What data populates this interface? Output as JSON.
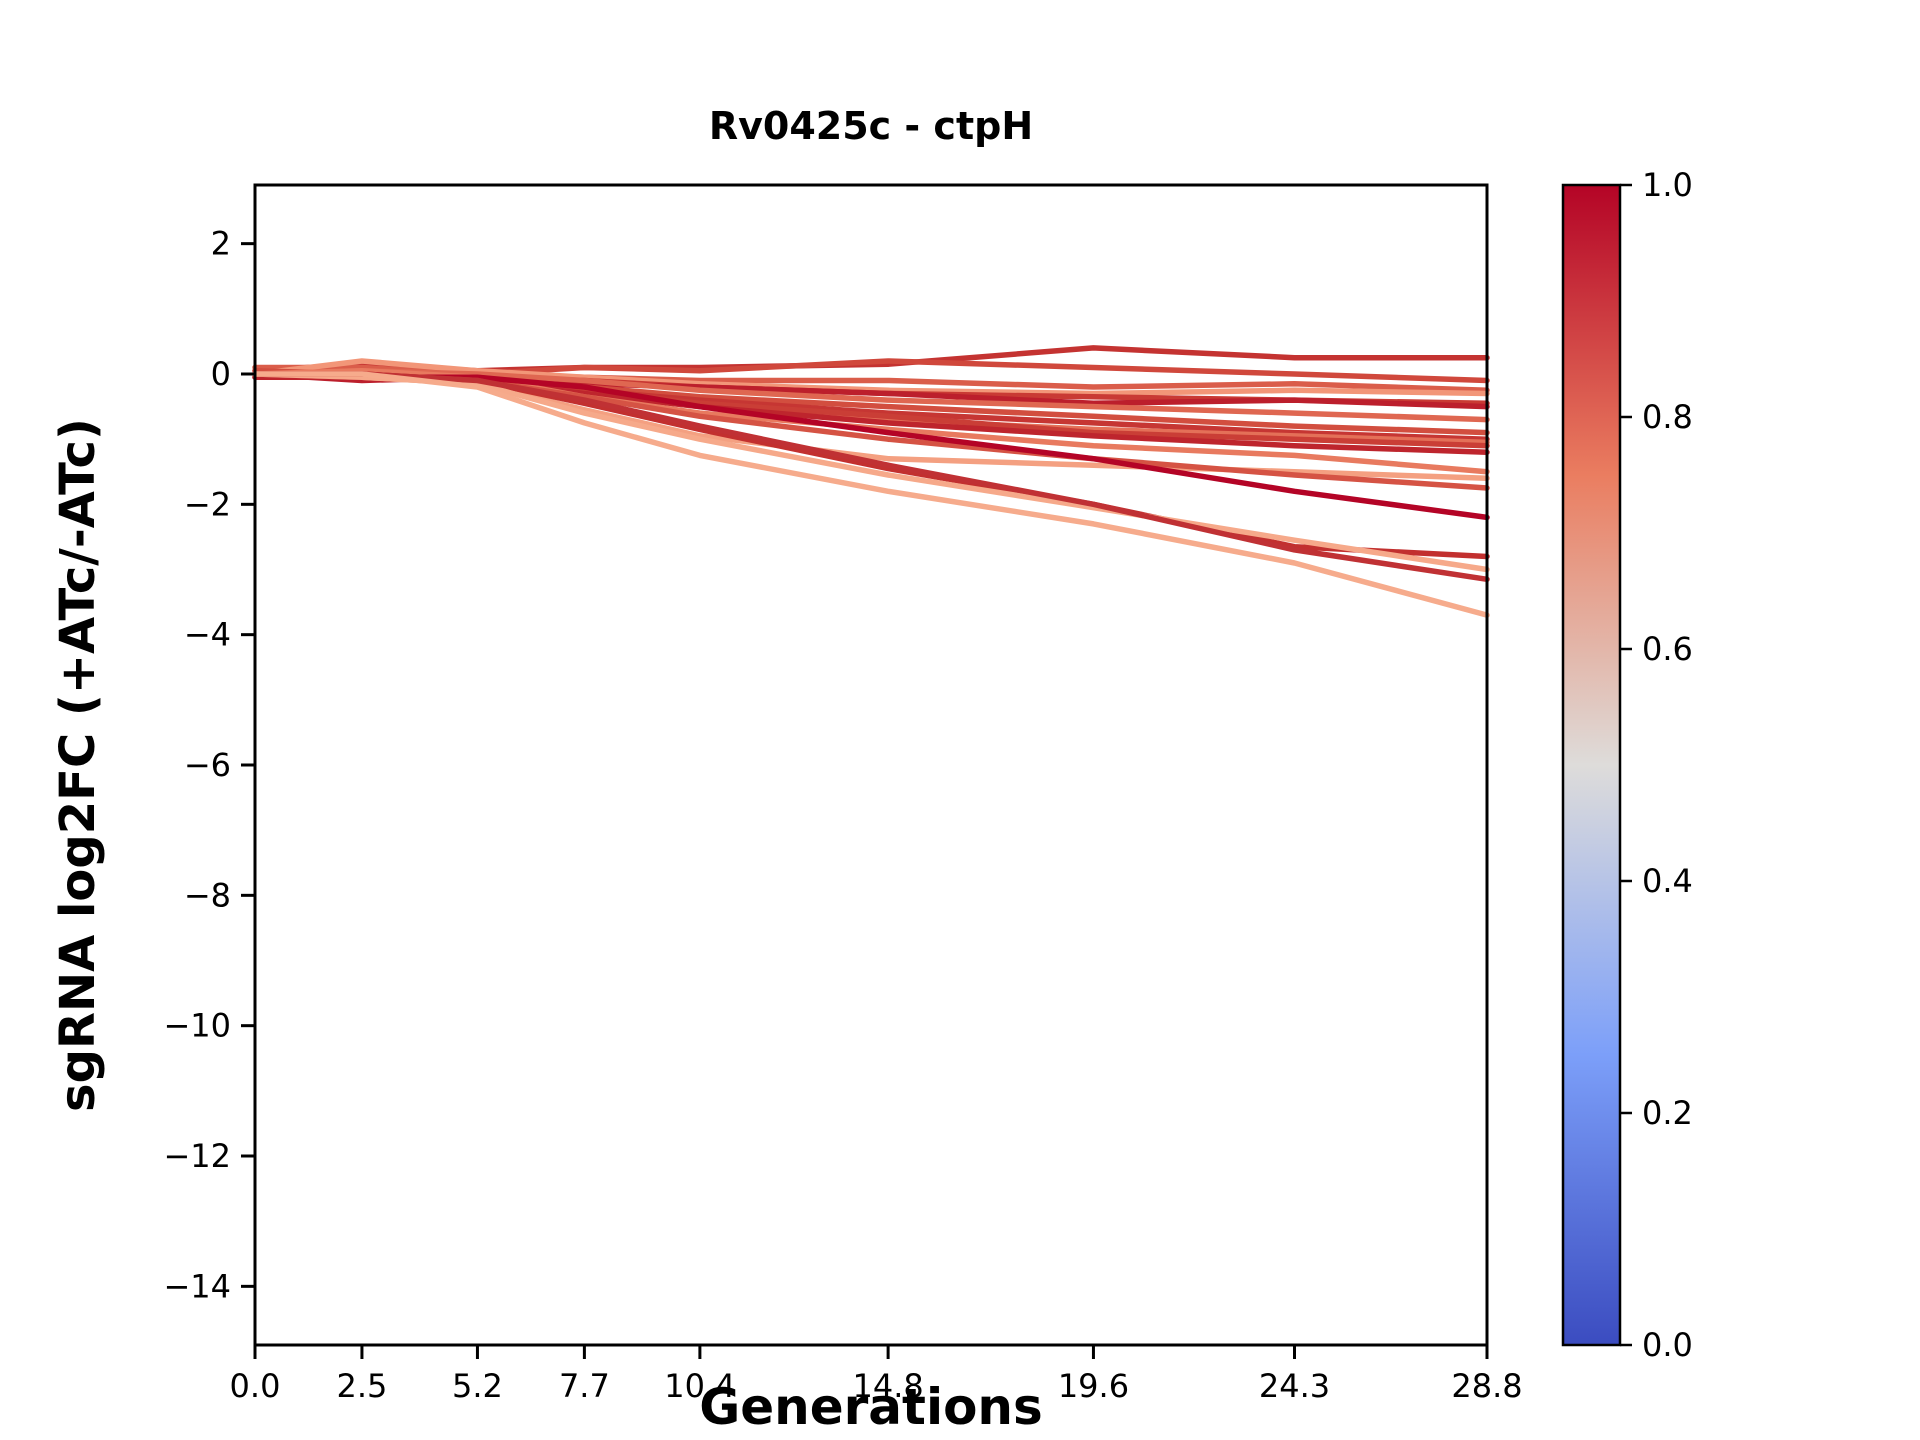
{
  "chart_data": {
    "type": "line",
    "title": "Rv0425c - ctpH",
    "xlabel": "Generations",
    "ylabel": "sgRNA log2FC (+ATc/-ATc)",
    "x": [
      0.0,
      2.5,
      5.2,
      7.7,
      10.4,
      14.8,
      19.6,
      24.3,
      28.8
    ],
    "xlim": [
      0,
      28.8
    ],
    "ylim": [
      -14.9,
      2.9
    ],
    "xtick_values": [
      0.0,
      2.5,
      5.2,
      7.7,
      10.4,
      14.8,
      19.6,
      24.3,
      28.8
    ],
    "xtick_labels": [
      "0.0",
      "2.5",
      "5.2",
      "7.7",
      "10.4",
      "14.8",
      "19.6",
      "24.3",
      "28.8"
    ],
    "ytick_values": [
      2,
      0,
      -2,
      -4,
      -6,
      -8,
      -10,
      -12,
      -14
    ],
    "ytick_labels": [
      "2",
      "0",
      "−2",
      "−4",
      "−6",
      "−8",
      "−10",
      "−12",
      "−14"
    ],
    "grid": false,
    "legend": "none",
    "line_width": 5.5,
    "axis_color": "#000000",
    "series": [
      {
        "color": "#c43331",
        "values": [
          0.05,
          0.15,
          0.05,
          0.1,
          0.1,
          0.15,
          0.4,
          0.25,
          0.25
        ]
      },
      {
        "color": "#d0483c",
        "values": [
          0.0,
          0.05,
          0.0,
          0.1,
          0.05,
          0.2,
          0.1,
          0.0,
          -0.1
        ]
      },
      {
        "color": "#da5d4a",
        "values": [
          0.1,
          0.1,
          0.0,
          -0.05,
          -0.1,
          -0.1,
          -0.2,
          -0.15,
          -0.25
        ]
      },
      {
        "color": "#f29678",
        "values": [
          0.0,
          0.2,
          0.05,
          -0.05,
          -0.15,
          -0.25,
          -0.3,
          -0.25,
          -0.3
        ]
      },
      {
        "color": "#c93a34",
        "values": [
          -0.05,
          0.0,
          -0.05,
          -0.1,
          -0.2,
          -0.3,
          -0.35,
          -0.4,
          -0.45
        ]
      },
      {
        "color": "#bc1f2c",
        "values": [
          0.0,
          -0.1,
          -0.05,
          -0.15,
          -0.2,
          -0.3,
          -0.45,
          -0.4,
          -0.5
        ]
      },
      {
        "color": "#df6751",
        "values": [
          0.0,
          0.05,
          0.0,
          -0.1,
          -0.25,
          -0.4,
          -0.5,
          -0.6,
          -0.7
        ]
      },
      {
        "color": "#d24e3f",
        "values": [
          0.05,
          0.0,
          -0.1,
          -0.2,
          -0.35,
          -0.5,
          -0.65,
          -0.8,
          -0.9
        ]
      },
      {
        "color": "#c63633",
        "values": [
          0.0,
          0.0,
          -0.05,
          -0.25,
          -0.4,
          -0.6,
          -0.75,
          -0.9,
          -1.0
        ]
      },
      {
        "color": "#e47058",
        "values": [
          0.0,
          -0.05,
          -0.1,
          -0.3,
          -0.5,
          -0.7,
          -0.85,
          -0.95,
          -1.05
        ]
      },
      {
        "color": "#ca3e36",
        "values": [
          0.0,
          0.0,
          -0.1,
          -0.25,
          -0.45,
          -0.65,
          -0.9,
          -1.0,
          -1.1
        ]
      },
      {
        "color": "#be252d",
        "values": [
          -0.05,
          -0.05,
          -0.1,
          -0.3,
          -0.5,
          -0.75,
          -0.95,
          -1.1,
          -1.2
        ]
      },
      {
        "color": "#e87a5f",
        "values": [
          0.0,
          0.05,
          -0.05,
          -0.35,
          -0.6,
          -0.85,
          -1.1,
          -1.25,
          -1.5
        ]
      },
      {
        "color": "#f4a081",
        "values": [
          0.0,
          -0.05,
          -0.15,
          -0.55,
          -0.95,
          -1.3,
          -1.4,
          -1.5,
          -1.6
        ]
      },
      {
        "color": "#d55344",
        "values": [
          0.0,
          0.0,
          -0.1,
          -0.35,
          -0.65,
          -1.0,
          -1.3,
          -1.55,
          -1.75
        ]
      },
      {
        "color": "#b40426",
        "values": [
          0.0,
          -0.05,
          -0.05,
          -0.2,
          -0.5,
          -0.9,
          -1.3,
          -1.8,
          -2.2
        ]
      },
      {
        "color": "#c2302f",
        "values": [
          0.0,
          0.0,
          -0.1,
          -0.45,
          -0.85,
          -1.45,
          -2.0,
          -2.65,
          -2.8
        ]
      },
      {
        "color": "#f6a98a",
        "values": [
          0.0,
          -0.05,
          -0.15,
          -0.6,
          -1.0,
          -1.55,
          -2.05,
          -2.55,
          -3.0
        ]
      },
      {
        "color": "#c03134",
        "values": [
          0.0,
          0.0,
          -0.1,
          -0.4,
          -0.8,
          -1.4,
          -2.0,
          -2.7,
          -3.15
        ]
      },
      {
        "color": "#f6ab8c",
        "values": [
          0.0,
          0.0,
          -0.2,
          -0.75,
          -1.25,
          -1.8,
          -2.3,
          -2.9,
          -3.7
        ]
      }
    ],
    "colorbar": {
      "ticks": [
        0.0,
        0.2,
        0.4,
        0.6,
        0.8,
        1.0
      ],
      "tick_labels": [
        "0.0",
        "0.2",
        "0.4",
        "0.6",
        "0.8",
        "1.0"
      ],
      "colormap": "coolwarm",
      "gradient_stops": [
        [
          0.0,
          "#3b4cc0"
        ],
        [
          0.25,
          "#7c9ff9"
        ],
        [
          0.5,
          "#dedcda"
        ],
        [
          0.75,
          "#ea7d60"
        ],
        [
          1.0,
          "#b40426"
        ]
      ]
    }
  }
}
